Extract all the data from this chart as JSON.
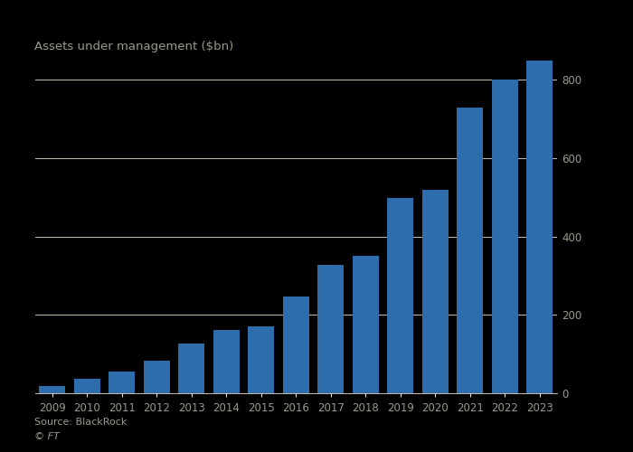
{
  "years": [
    2009,
    2010,
    2011,
    2012,
    2013,
    2014,
    2015,
    2016,
    2017,
    2018,
    2019,
    2020,
    2021,
    2022,
    2023
  ],
  "values": [
    18,
    38,
    55,
    82,
    128,
    162,
    172,
    248,
    328,
    352,
    498,
    520,
    730,
    800,
    850
  ],
  "bar_color": "#2e6dac",
  "background_color": "#000000",
  "title": "Assets under management ($bn)",
  "ylim": [
    0,
    860
  ],
  "yticks": [
    0,
    200,
    400,
    600,
    800
  ],
  "source_text": "Source: BlackRock",
  "ft_text": "© FT",
  "grid_color": "#e8e0d0",
  "text_color": "#9a9a8a",
  "title_color": "#9a9a8a",
  "grid_linewidth": 0.6
}
